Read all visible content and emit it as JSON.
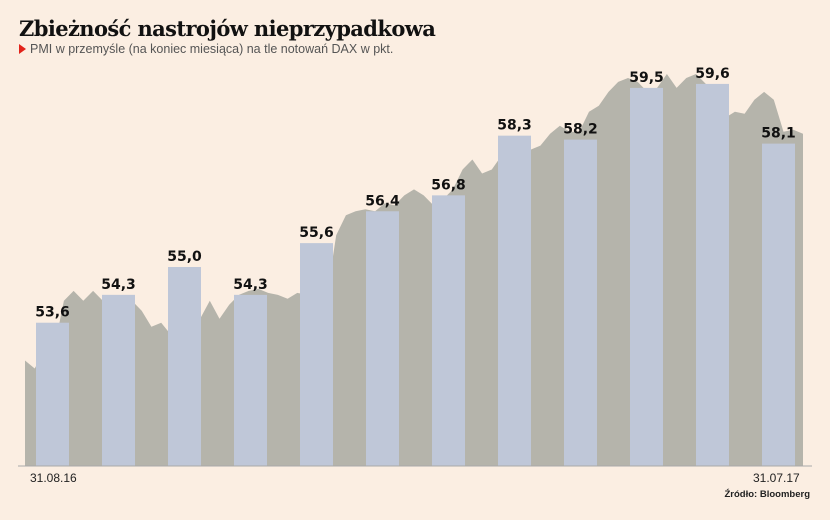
{
  "chart_data": {
    "type": "bar",
    "title": "Zbieżność nastrojów nieprzypadkowa",
    "subtitle": "PMI w przemyśle (na koniec miesiąca) na tle notowań DAX w pkt.",
    "source": "Źródło: Bloomberg",
    "x_start_label": "31.08.16",
    "x_end_label": "31.07.17",
    "ylim": [
      50,
      62
    ],
    "series": [
      {
        "name": "PMI",
        "values": [
          53.6,
          54.3,
          55.0,
          54.3,
          55.6,
          56.4,
          56.8,
          58.3,
          58.2,
          59.5,
          59.6,
          58.1
        ],
        "labels": [
          "53,6",
          "54,3",
          "55,0",
          "54,3",
          "55,6",
          "56,4",
          "56,8",
          "58,3",
          "58,2",
          "59,5",
          "59,6",
          "58,1"
        ]
      },
      {
        "name": "DAX (background area, relative scale)",
        "type": "area",
        "values": [
          52.65,
          52.45,
          52.9,
          52.95,
          54.15,
          54.4,
          54.15,
          54.4,
          54.15,
          53.9,
          54.05,
          54.15,
          53.9,
          53.5,
          53.6,
          53.3,
          53.5,
          53.4,
          53.7,
          54.15,
          53.7,
          54.05,
          54.3,
          54.4,
          54.45,
          54.35,
          54.3,
          54.2,
          54.35,
          54.3,
          54.25,
          54.2,
          55.8,
          56.3,
          56.4,
          56.45,
          56.4,
          56.6,
          56.55,
          56.8,
          56.95,
          56.8,
          56.55,
          56.7,
          56.95,
          57.45,
          57.7,
          57.35,
          57.45,
          57.8,
          57.7,
          57.55,
          57.95,
          58.05,
          58.35,
          58.55,
          58.4,
          58.4,
          58.9,
          59.05,
          59.4,
          59.65,
          59.75,
          59.65,
          59.4,
          59.5,
          59.85,
          59.5,
          59.75,
          59.85,
          59.6,
          58.95,
          58.75,
          58.9,
          58.85,
          59.2,
          59.4,
          59.2,
          58.4,
          58.45,
          58.35
        ]
      }
    ],
    "colors": {
      "background": "#fbeee2",
      "bars": "#bfc7d8",
      "area": "#b5b4ab",
      "accent": "#e2231a"
    }
  }
}
